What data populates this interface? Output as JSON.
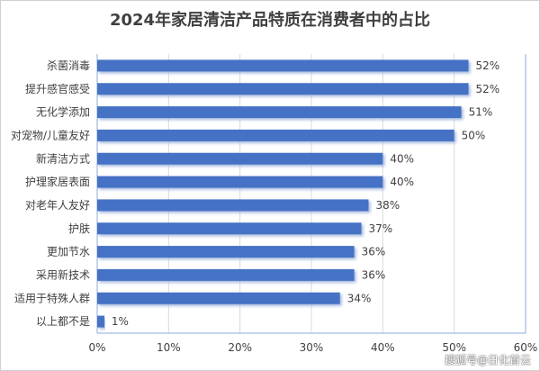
{
  "chart_data": {
    "type": "bar",
    "orientation": "horizontal",
    "title": "2024年家居清洁产品特质在消费者中的占比",
    "categories": [
      "杀菌消毒",
      "提升感官感受",
      "无化学添加",
      "对宠物/儿童友好",
      "新清洁方式",
      "护理家居表面",
      "对老年人友好",
      "护肤",
      "更加节水",
      "采用新技术",
      "适用于特殊人群",
      "以上都不是"
    ],
    "values": [
      52,
      52,
      51,
      50,
      40,
      40,
      38,
      37,
      36,
      36,
      34,
      1
    ],
    "value_labels": [
      "52%",
      "52%",
      "51%",
      "50%",
      "40%",
      "40%",
      "38%",
      "37%",
      "36%",
      "36%",
      "34%",
      "1%"
    ],
    "xlim": [
      0,
      60
    ],
    "x_ticks": [
      0,
      10,
      20,
      30,
      40,
      50,
      60
    ],
    "x_tick_labels": [
      "0%",
      "10%",
      "20%",
      "30%",
      "40%",
      "50%",
      "60%"
    ],
    "xlabel": "",
    "ylabel": "",
    "grid": true,
    "bar_color": "#4472c4",
    "grid_color": "#d9d9d9",
    "axis_color": "#8eaadb"
  },
  "watermark": "搜狐号@日化首云"
}
